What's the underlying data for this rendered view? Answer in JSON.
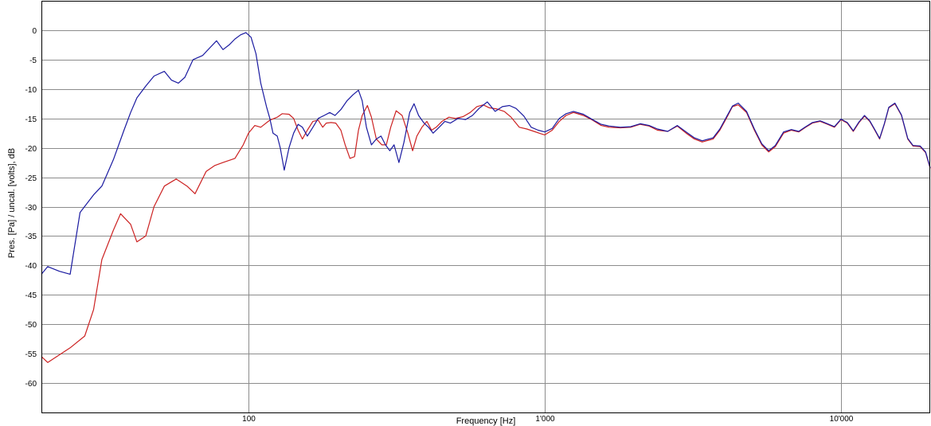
{
  "chart_data": {
    "type": "line",
    "xlabel": "Frequency [Hz]",
    "ylabel": "Pres. [Pa] / uncal. [volts], dB",
    "xscale": "log",
    "xlim": [
      20,
      20000
    ],
    "ylim": [
      -65,
      5
    ],
    "grid": true,
    "x_ticks": [
      {
        "value": 100,
        "label": "100"
      },
      {
        "value": 1000,
        "label": "1'000"
      },
      {
        "value": 10000,
        "label": "10'000"
      }
    ],
    "y_ticks": [
      {
        "value": 0,
        "label": "0"
      },
      {
        "value": -5,
        "label": "-5"
      },
      {
        "value": -10,
        "label": "-10"
      },
      {
        "value": -15,
        "label": "-15"
      },
      {
        "value": -20,
        "label": "-20"
      },
      {
        "value": -25,
        "label": "-25"
      },
      {
        "value": -30,
        "label": "-30"
      },
      {
        "value": -35,
        "label": "-35"
      },
      {
        "value": -40,
        "label": "-40"
      },
      {
        "value": -45,
        "label": "-45"
      },
      {
        "value": -50,
        "label": "-50"
      },
      {
        "value": -55,
        "label": "-55"
      },
      {
        "value": -60,
        "label": "-60"
      }
    ],
    "series": [
      {
        "color": "#cc2222",
        "points": [
          [
            20,
            -55.5
          ],
          [
            21,
            -56.5
          ],
          [
            25,
            -54
          ],
          [
            28,
            -52
          ],
          [
            30,
            -47.5
          ],
          [
            32,
            -39
          ],
          [
            35,
            -34
          ],
          [
            37,
            -31.2
          ],
          [
            40,
            -33
          ],
          [
            42,
            -36
          ],
          [
            45,
            -35
          ],
          [
            48,
            -30
          ],
          [
            52,
            -26.5
          ],
          [
            57,
            -25.3
          ],
          [
            62,
            -26.5
          ],
          [
            66,
            -27.8
          ],
          [
            72,
            -24
          ],
          [
            77,
            -23
          ],
          [
            82,
            -22.5
          ],
          [
            90,
            -21.8
          ],
          [
            96,
            -19.5
          ],
          [
            100,
            -17.5
          ],
          [
            105,
            -16.2
          ],
          [
            110,
            -16.5
          ],
          [
            118,
            -15.3
          ],
          [
            125,
            -14.8
          ],
          [
            130,
            -14.2
          ],
          [
            137,
            -14.3
          ],
          [
            142,
            -15
          ],
          [
            147,
            -17
          ],
          [
            152,
            -18.5
          ],
          [
            158,
            -17
          ],
          [
            165,
            -15.5
          ],
          [
            172,
            -15.3
          ],
          [
            178,
            -16.5
          ],
          [
            183,
            -15.8
          ],
          [
            190,
            -15.7
          ],
          [
            197,
            -15.8
          ],
          [
            205,
            -17
          ],
          [
            212,
            -19.5
          ],
          [
            220,
            -21.8
          ],
          [
            228,
            -21.5
          ],
          [
            235,
            -17
          ],
          [
            242,
            -14.5
          ],
          [
            252,
            -12.8
          ],
          [
            260,
            -14.8
          ],
          [
            270,
            -18.5
          ],
          [
            282,
            -19.5
          ],
          [
            292,
            -19.5
          ],
          [
            302,
            -16.5
          ],
          [
            315,
            -13.7
          ],
          [
            330,
            -14.5
          ],
          [
            345,
            -17.5
          ],
          [
            358,
            -20.5
          ],
          [
            370,
            -18
          ],
          [
            385,
            -16.5
          ],
          [
            400,
            -15.5
          ],
          [
            415,
            -17
          ],
          [
            430,
            -16.5
          ],
          [
            450,
            -15.5
          ],
          [
            475,
            -14.8
          ],
          [
            500,
            -15
          ],
          [
            530,
            -14.7
          ],
          [
            560,
            -14
          ],
          [
            590,
            -13
          ],
          [
            620,
            -12.7
          ],
          [
            650,
            -13.2
          ],
          [
            690,
            -13.4
          ],
          [
            730,
            -13.8
          ],
          [
            770,
            -14.8
          ],
          [
            820,
            -16.5
          ],
          [
            870,
            -16.8
          ],
          [
            920,
            -17.2
          ],
          [
            970,
            -17.6
          ],
          [
            1000,
            -17.8
          ],
          [
            1060,
            -17
          ],
          [
            1120,
            -15.5
          ],
          [
            1180,
            -14.5
          ],
          [
            1250,
            -14
          ],
          [
            1350,
            -14.5
          ],
          [
            1450,
            -15.3
          ],
          [
            1550,
            -16.2
          ],
          [
            1650,
            -16.5
          ],
          [
            1800,
            -16.6
          ],
          [
            1950,
            -16.5
          ],
          [
            2100,
            -16
          ],
          [
            2250,
            -16.3
          ],
          [
            2400,
            -17
          ],
          [
            2600,
            -17.2
          ],
          [
            2800,
            -16.3
          ],
          [
            3000,
            -17.5
          ],
          [
            3200,
            -18.5
          ],
          [
            3400,
            -19
          ],
          [
            3700,
            -18.5
          ],
          [
            3900,
            -17
          ],
          [
            4100,
            -15
          ],
          [
            4300,
            -13
          ],
          [
            4500,
            -12.7
          ],
          [
            4800,
            -14
          ],
          [
            5100,
            -17
          ],
          [
            5400,
            -19.5
          ],
          [
            5700,
            -20.7
          ],
          [
            6000,
            -19.8
          ],
          [
            6400,
            -17.5
          ],
          [
            6800,
            -17
          ],
          [
            7200,
            -17.3
          ],
          [
            7600,
            -16.5
          ],
          [
            8000,
            -15.8
          ],
          [
            8500,
            -15.5
          ],
          [
            9000,
            -16
          ],
          [
            9500,
            -16.5
          ],
          [
            10000,
            -15.2
          ],
          [
            10500,
            -15.8
          ],
          [
            11000,
            -17.2
          ],
          [
            11500,
            -15.7
          ],
          [
            12000,
            -14.6
          ],
          [
            12500,
            -15.5
          ],
          [
            13000,
            -17
          ],
          [
            13500,
            -18.5
          ],
          [
            14000,
            -16
          ],
          [
            14500,
            -13.2
          ],
          [
            15200,
            -12.5
          ],
          [
            16000,
            -14.5
          ],
          [
            16800,
            -18.5
          ],
          [
            17500,
            -19.7
          ],
          [
            18500,
            -19.8
          ],
          [
            19300,
            -20.8
          ],
          [
            20000,
            -23.5
          ]
        ]
      },
      {
        "color": "#1a1aa0",
        "points": [
          [
            20,
            -41.5
          ],
          [
            21,
            -40.2
          ],
          [
            23,
            -41
          ],
          [
            25,
            -41.5
          ],
          [
            27,
            -31
          ],
          [
            30,
            -28
          ],
          [
            32,
            -26.5
          ],
          [
            35,
            -22
          ],
          [
            38,
            -17
          ],
          [
            40,
            -14
          ],
          [
            42,
            -11.5
          ],
          [
            45,
            -9.5
          ],
          [
            48,
            -7.8
          ],
          [
            52,
            -7
          ],
          [
            55,
            -8.5
          ],
          [
            58,
            -9
          ],
          [
            61,
            -8
          ],
          [
            65,
            -5
          ],
          [
            70,
            -4.3
          ],
          [
            74,
            -3
          ],
          [
            78,
            -1.8
          ],
          [
            82,
            -3.3
          ],
          [
            86,
            -2.5
          ],
          [
            90,
            -1.5
          ],
          [
            94,
            -0.8
          ],
          [
            98,
            -0.4
          ],
          [
            102,
            -1.2
          ],
          [
            106,
            -4
          ],
          [
            110,
            -9
          ],
          [
            115,
            -13
          ],
          [
            118,
            -15
          ],
          [
            121,
            -17.5
          ],
          [
            125,
            -18
          ],
          [
            128,
            -20
          ],
          [
            132,
            -23.8
          ],
          [
            137,
            -20
          ],
          [
            142,
            -17.5
          ],
          [
            147,
            -16
          ],
          [
            152,
            -16.5
          ],
          [
            158,
            -18
          ],
          [
            165,
            -16.5
          ],
          [
            172,
            -15
          ],
          [
            180,
            -14.5
          ],
          [
            188,
            -14
          ],
          [
            196,
            -14.5
          ],
          [
            205,
            -13.5
          ],
          [
            215,
            -12
          ],
          [
            225,
            -11
          ],
          [
            235,
            -10.2
          ],
          [
            242,
            -12
          ],
          [
            250,
            -16.5
          ],
          [
            260,
            -19.5
          ],
          [
            270,
            -18.5
          ],
          [
            280,
            -18
          ],
          [
            290,
            -19.5
          ],
          [
            300,
            -20.5
          ],
          [
            310,
            -19.5
          ],
          [
            322,
            -22.5
          ],
          [
            335,
            -19
          ],
          [
            350,
            -14
          ],
          [
            362,
            -12.5
          ],
          [
            375,
            -14.5
          ],
          [
            390,
            -15.7
          ],
          [
            405,
            -16.5
          ],
          [
            420,
            -17.5
          ],
          [
            440,
            -16.5
          ],
          [
            460,
            -15.5
          ],
          [
            480,
            -15.8
          ],
          [
            510,
            -15
          ],
          [
            540,
            -15.2
          ],
          [
            570,
            -14.5
          ],
          [
            600,
            -13.3
          ],
          [
            640,
            -12.2
          ],
          [
            680,
            -13.8
          ],
          [
            720,
            -13
          ],
          [
            760,
            -12.8
          ],
          [
            800,
            -13.3
          ],
          [
            850,
            -14.6
          ],
          [
            900,
            -16.5
          ],
          [
            950,
            -17
          ],
          [
            1000,
            -17.3
          ],
          [
            1060,
            -16.7
          ],
          [
            1120,
            -15
          ],
          [
            1180,
            -14.2
          ],
          [
            1250,
            -13.8
          ],
          [
            1350,
            -14.3
          ],
          [
            1450,
            -15.2
          ],
          [
            1550,
            -16
          ],
          [
            1650,
            -16.3
          ],
          [
            1800,
            -16.5
          ],
          [
            1950,
            -16.4
          ],
          [
            2100,
            -15.9
          ],
          [
            2250,
            -16.2
          ],
          [
            2400,
            -16.8
          ],
          [
            2600,
            -17.2
          ],
          [
            2800,
            -16.2
          ],
          [
            3000,
            -17.3
          ],
          [
            3200,
            -18.3
          ],
          [
            3400,
            -18.8
          ],
          [
            3700,
            -18.3
          ],
          [
            3900,
            -16.8
          ],
          [
            4100,
            -14.8
          ],
          [
            4300,
            -12.9
          ],
          [
            4500,
            -12.4
          ],
          [
            4800,
            -13.8
          ],
          [
            5100,
            -16.8
          ],
          [
            5400,
            -19.3
          ],
          [
            5700,
            -20.5
          ],
          [
            6000,
            -19.6
          ],
          [
            6400,
            -17.3
          ],
          [
            6800,
            -16.9
          ],
          [
            7200,
            -17.2
          ],
          [
            7600,
            -16.4
          ],
          [
            8000,
            -15.7
          ],
          [
            8500,
            -15.4
          ],
          [
            9000,
            -15.9
          ],
          [
            9500,
            -16.4
          ],
          [
            10000,
            -15.1
          ],
          [
            10500,
            -15.7
          ],
          [
            11000,
            -17.1
          ],
          [
            11500,
            -15.6
          ],
          [
            12000,
            -14.5
          ],
          [
            12500,
            -15.4
          ],
          [
            13000,
            -16.9
          ],
          [
            13500,
            -18.4
          ],
          [
            14000,
            -15.9
          ],
          [
            14500,
            -13.1
          ],
          [
            15200,
            -12.4
          ],
          [
            16000,
            -14.4
          ],
          [
            16800,
            -18.4
          ],
          [
            17500,
            -19.6
          ],
          [
            18500,
            -19.7
          ],
          [
            19300,
            -20.7
          ],
          [
            20000,
            -23.4
          ]
        ]
      }
    ]
  }
}
